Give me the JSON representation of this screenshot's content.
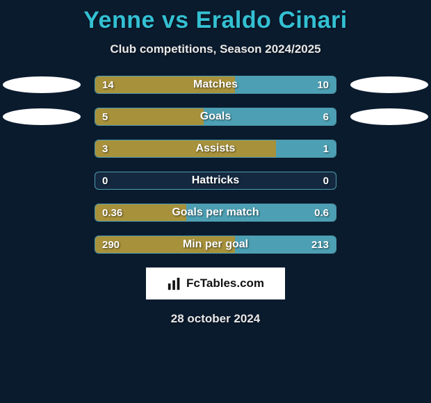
{
  "background_color": "#0b1b2e",
  "title": {
    "text": "Yenne vs Eraldo Cinari",
    "color": "#33c0d3",
    "fontsize": 34
  },
  "subtitle": {
    "text": "Club competitions, Season 2024/2025",
    "color": "#e8e8e8",
    "fontsize": 17
  },
  "oval_color": "#ffffff",
  "bar_style": {
    "border_color": "#4d9db0",
    "track_bg": "#14283f",
    "left_fill": "#a7913a",
    "right_fill": "#4d9fb3",
    "label_color": "#ffffff",
    "value_color": "#ffffff",
    "label_fontsize": 16,
    "value_fontsize": 15
  },
  "rows": [
    {
      "label": "Matches",
      "left_val": "14",
      "right_val": "10",
      "left_pct": 58,
      "right_pct": 42,
      "show_ovals": true
    },
    {
      "label": "Goals",
      "left_val": "5",
      "right_val": "6",
      "left_pct": 45,
      "right_pct": 55,
      "show_ovals": true
    },
    {
      "label": "Assists",
      "left_val": "3",
      "right_val": "1",
      "left_pct": 75,
      "right_pct": 25,
      "show_ovals": false
    },
    {
      "label": "Hattricks",
      "left_val": "0",
      "right_val": "0",
      "left_pct": 0,
      "right_pct": 0,
      "show_ovals": false
    },
    {
      "label": "Goals per match",
      "left_val": "0.36",
      "right_val": "0.6",
      "left_pct": 38,
      "right_pct": 62,
      "show_ovals": false
    },
    {
      "label": "Min per goal",
      "left_val": "290",
      "right_val": "213",
      "left_pct": 58,
      "right_pct": 42,
      "show_ovals": false
    }
  ],
  "logo": {
    "text": "FcTables.com",
    "bg": "#ffffff",
    "text_color": "#111111"
  },
  "date": {
    "text": "28 october 2024",
    "color": "#e8e8e8",
    "fontsize": 17
  }
}
